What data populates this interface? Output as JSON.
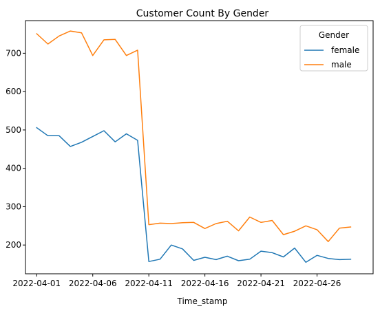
{
  "chart_data": {
    "type": "line",
    "title": "Customer Count By Gender",
    "xlabel": "Time_stamp",
    "ylabel": "",
    "x": [
      "2022-04-01",
      "2022-04-02",
      "2022-04-03",
      "2022-04-04",
      "2022-04-05",
      "2022-04-06",
      "2022-04-07",
      "2022-04-08",
      "2022-04-09",
      "2022-04-10",
      "2022-04-11",
      "2022-04-12",
      "2022-04-13",
      "2022-04-14",
      "2022-04-15",
      "2022-04-16",
      "2022-04-17",
      "2022-04-18",
      "2022-04-19",
      "2022-04-20",
      "2022-04-21",
      "2022-04-22",
      "2022-04-23",
      "2022-04-24",
      "2022-04-25",
      "2022-04-26",
      "2022-04-27",
      "2022-04-28",
      "2022-04-29",
      "2022-04-30"
    ],
    "xticks": [
      "2022-04-01",
      "2022-04-06",
      "2022-04-11",
      "2022-04-16",
      "2022-04-21",
      "2022-04-26"
    ],
    "yticks": [
      200,
      300,
      400,
      500,
      600,
      700
    ],
    "xlim": [
      "2022-03-31",
      "2022-05-01"
    ],
    "ylim": [
      125,
      785
    ],
    "grid": false,
    "legend": {
      "title": "Gender",
      "placement": "top-right"
    },
    "series": [
      {
        "name": "female",
        "color": "#1f77b4",
        "values": [
          506,
          485,
          485,
          457,
          468,
          483,
          498,
          469,
          490,
          473,
          157,
          163,
          200,
          190,
          160,
          168,
          162,
          171,
          159,
          163,
          184,
          180,
          169,
          192,
          155,
          173,
          165,
          162,
          163,
          null
        ]
      },
      {
        "name": "male",
        "color": "#ff7f0e",
        "values": [
          751,
          724,
          745,
          758,
          753,
          694,
          735,
          736,
          694,
          708,
          253,
          257,
          256,
          258,
          259,
          243,
          256,
          262,
          237,
          273,
          259,
          264,
          227,
          236,
          250,
          240,
          209,
          244,
          247,
          null
        ]
      }
    ]
  }
}
